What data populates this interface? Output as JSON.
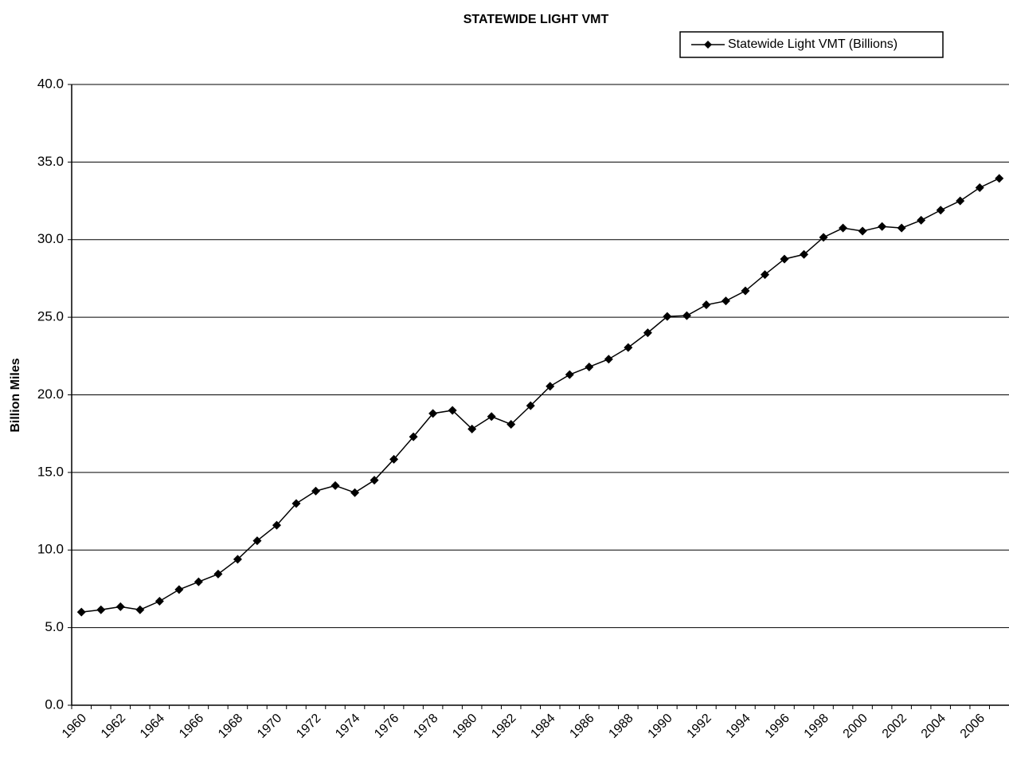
{
  "chart_data": {
    "type": "line",
    "title": "STATEWIDE LIGHT VMT",
    "y_label": "Billion Miles",
    "categories": [
      "1960",
      null,
      "1962",
      null,
      "1964",
      null,
      "1966",
      null,
      "1968",
      null,
      "1970",
      null,
      "1972",
      null,
      "1974",
      null,
      "1976",
      null,
      "1978",
      null,
      "1980",
      null,
      "1982",
      null,
      "1984",
      null,
      "1986",
      null,
      "1988",
      null,
      "1990",
      null,
      "1992",
      null,
      "1994",
      null,
      "1996",
      null,
      "1998",
      null,
      "2000",
      null,
      "2002",
      null,
      "2004",
      null,
      "2006",
      null
    ],
    "series": [
      {
        "name": "Statewide Light VMT (Billions)",
        "color": "#000000",
        "values": [
          6.0,
          6.15,
          6.35,
          6.15,
          6.7,
          7.45,
          7.95,
          8.45,
          9.4,
          10.6,
          11.6,
          13.0,
          13.8,
          14.15,
          13.7,
          14.5,
          15.85,
          17.3,
          18.8,
          19.0,
          17.8,
          18.6,
          18.1,
          19.3,
          20.55,
          21.3,
          21.8,
          22.3,
          23.05,
          24.0,
          25.05,
          25.1,
          25.8,
          26.05,
          26.7,
          27.75,
          28.75,
          29.05,
          30.15,
          30.75,
          30.55,
          30.85,
          30.75,
          31.25,
          31.9,
          32.5,
          33.35,
          33.95
        ]
      }
    ],
    "ylim": [
      0,
      40
    ],
    "yticks": [
      {
        "value": 0,
        "label": "0.0"
      },
      {
        "value": 5,
        "label": "5.0"
      },
      {
        "value": 10,
        "label": "10.0"
      },
      {
        "value": 15,
        "label": "15.0"
      },
      {
        "value": 20,
        "label": "20.0"
      },
      {
        "value": 25,
        "label": "25.0"
      },
      {
        "value": 30,
        "label": "30.0"
      },
      {
        "value": 35,
        "label": "35.0"
      },
      {
        "value": 40,
        "label": "40.0"
      }
    ],
    "grid": true,
    "legend": "top-right"
  }
}
